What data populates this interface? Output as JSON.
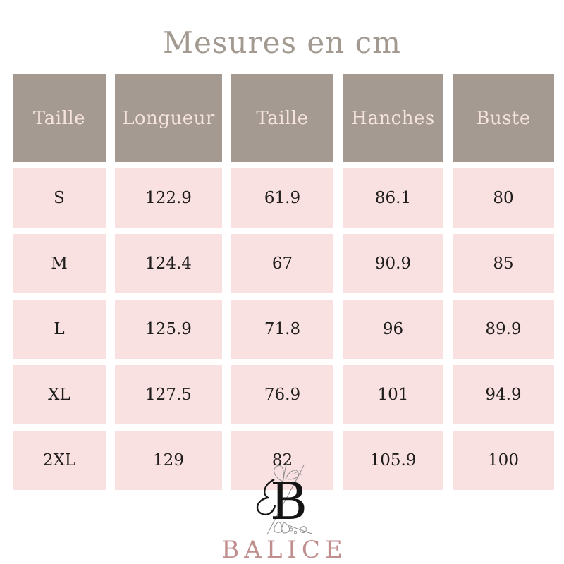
{
  "title": "Mesures en cm",
  "table": {
    "headers": [
      "Taille",
      "Longueur",
      "Taille",
      "Hanches",
      "Buste"
    ],
    "rows": [
      [
        "S",
        "122.9",
        "61.9",
        "86.1",
        "80"
      ],
      [
        "M",
        "124.4",
        "67",
        "90.9",
        "85"
      ],
      [
        "L",
        "125.9",
        "71.8",
        "96",
        "89.9"
      ],
      [
        "XL",
        "127.5",
        "76.9",
        "101",
        "94.9"
      ],
      [
        "2XL",
        "129",
        "82",
        "105.9",
        "100"
      ]
    ]
  },
  "logo": {
    "monogram": "B",
    "brand": "BALICE"
  },
  "colors": {
    "header_bg": "#a49a91",
    "header_text": "#f6e3e0",
    "cell_bg": "#f9e0e1",
    "cell_text": "#1e1d1b",
    "title_text": "#a29990",
    "brand_text": "#c08e8d",
    "page_bg": "#ffffff"
  },
  "chart_data": {
    "type": "table",
    "title": "Mesures en cm",
    "unit": "cm",
    "columns": [
      "Taille",
      "Longueur",
      "Taille",
      "Hanches",
      "Buste"
    ],
    "rows": [
      {
        "size": "S",
        "longueur": 122.9,
        "taille": 61.9,
        "hanches": 86.1,
        "buste": 80
      },
      {
        "size": "M",
        "longueur": 124.4,
        "taille": 67,
        "hanches": 90.9,
        "buste": 85
      },
      {
        "size": "L",
        "longueur": 125.9,
        "taille": 71.8,
        "hanches": 96,
        "buste": 89.9
      },
      {
        "size": "XL",
        "longueur": 127.5,
        "taille": 76.9,
        "hanches": 101,
        "buste": 94.9
      },
      {
        "size": "2XL",
        "longueur": 129,
        "taille": 82,
        "hanches": 105.9,
        "buste": 100
      }
    ]
  }
}
